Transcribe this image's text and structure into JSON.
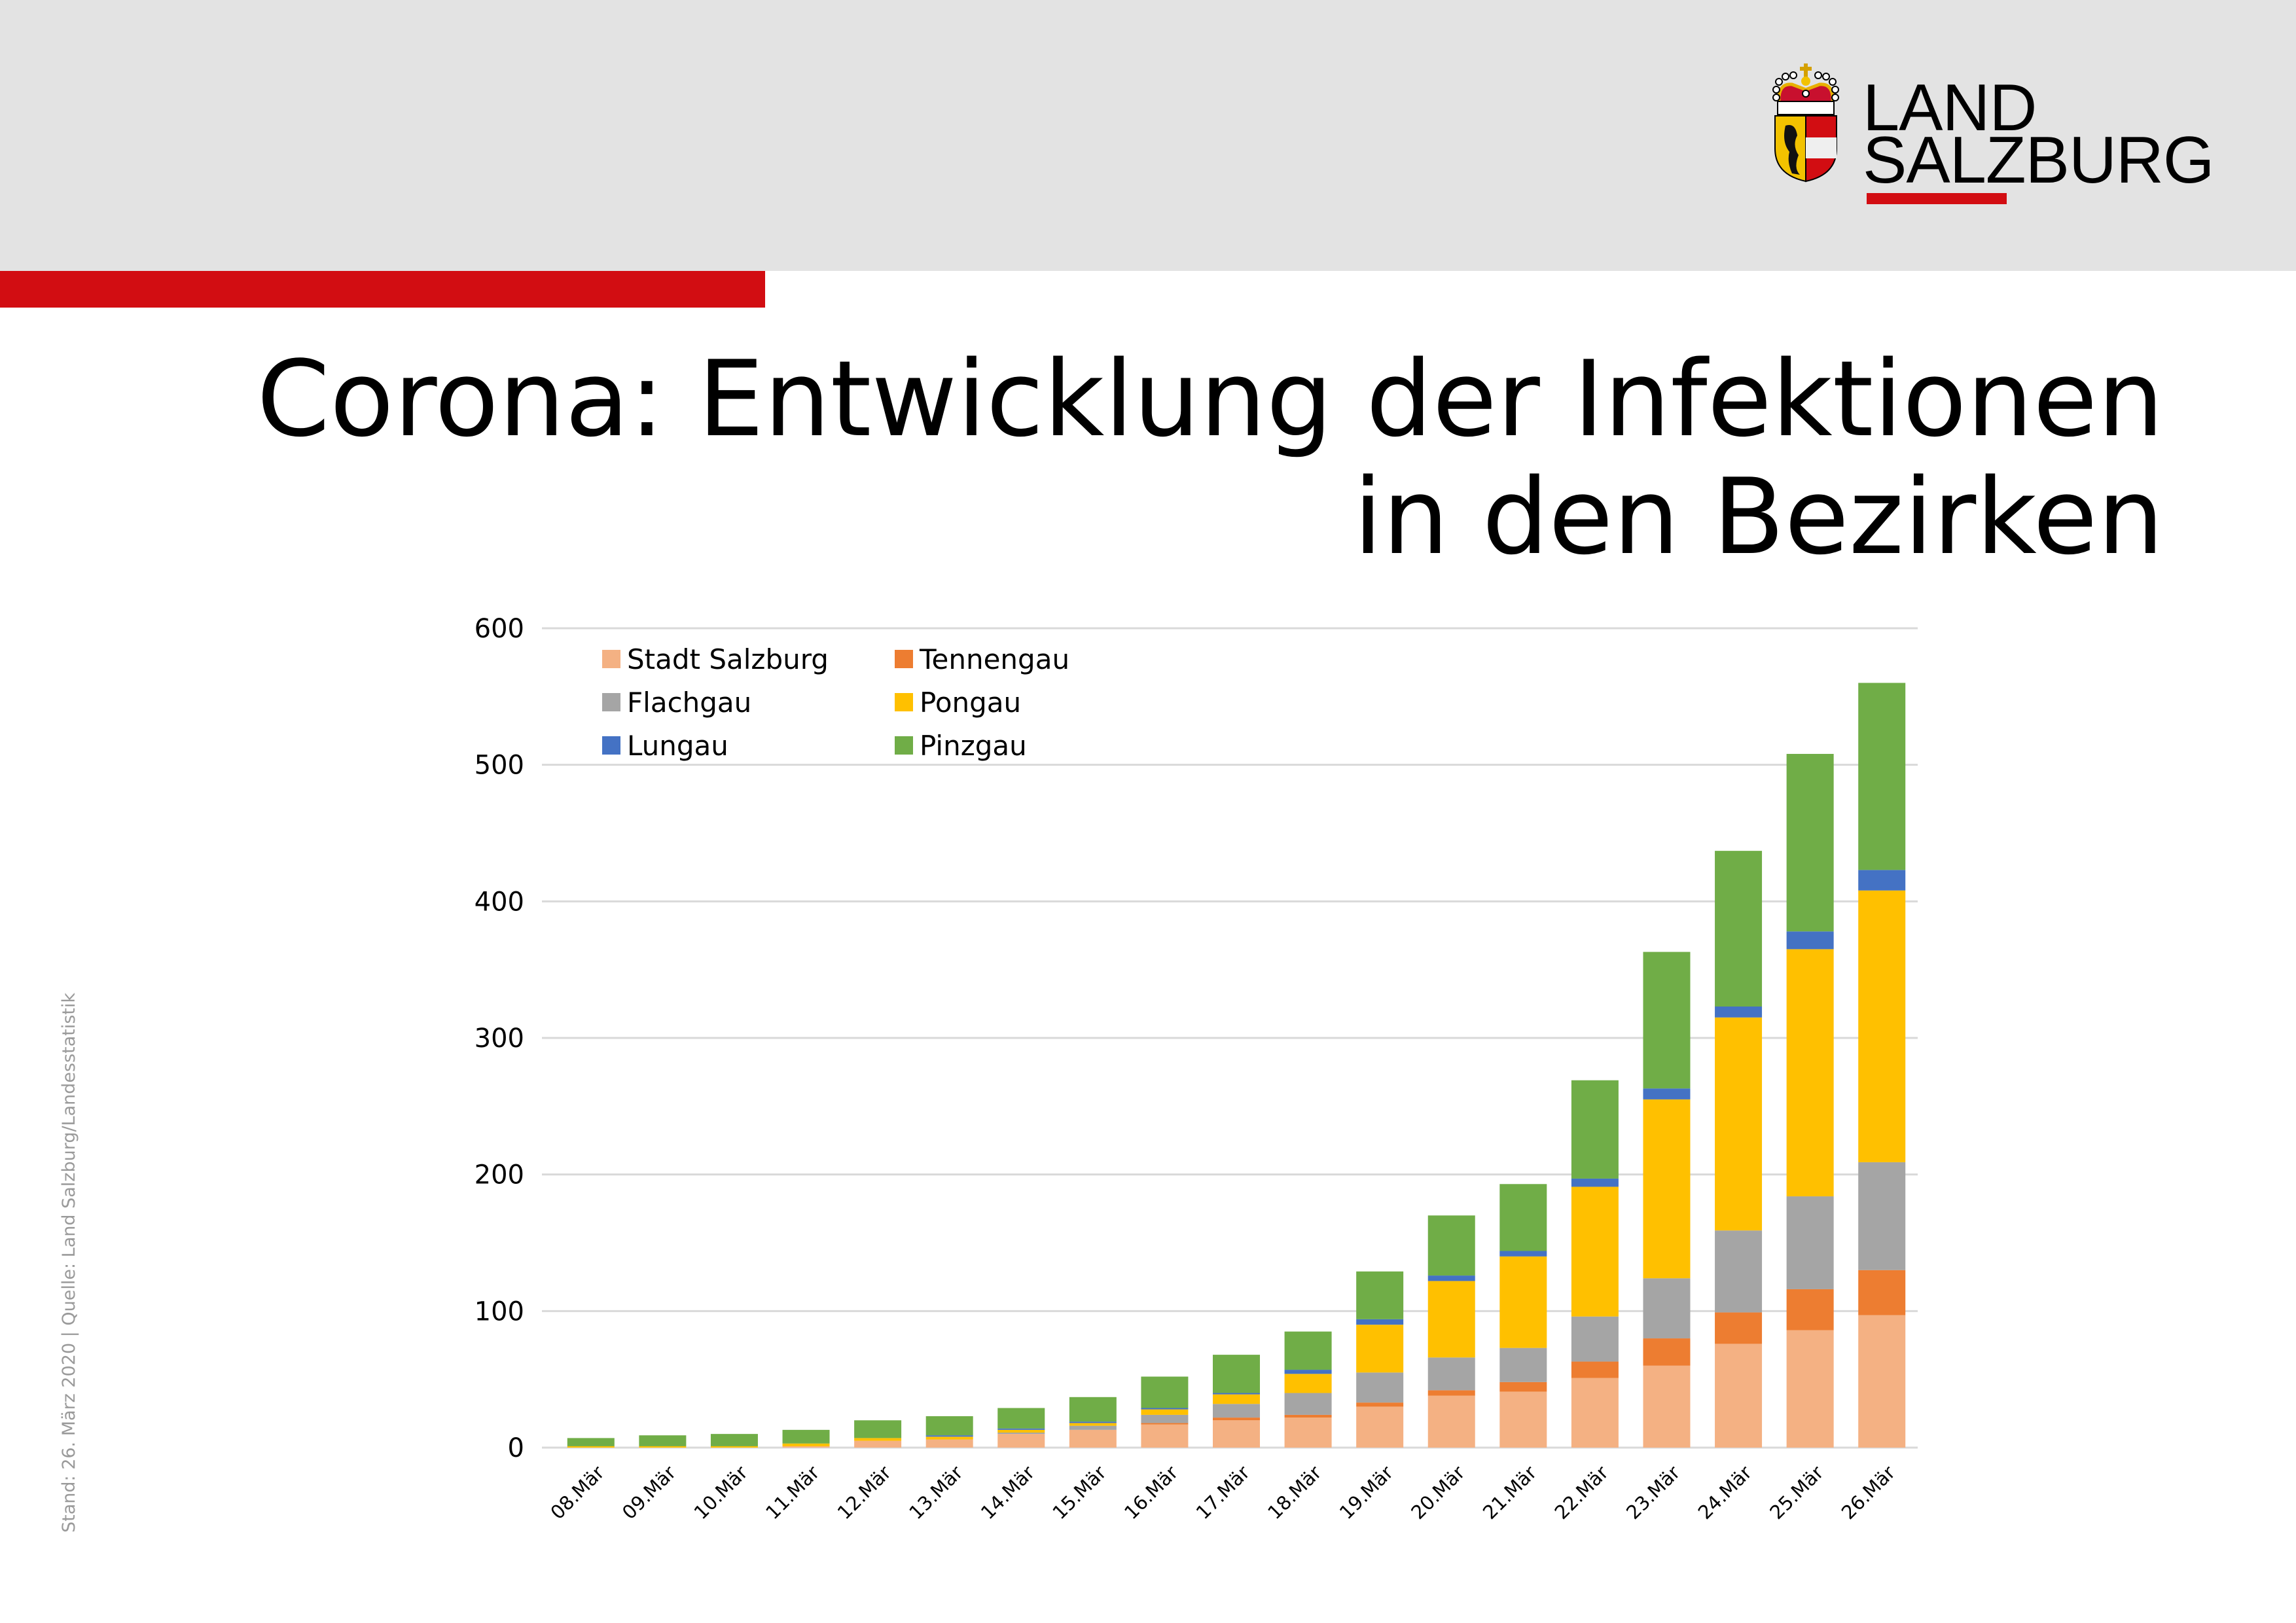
{
  "header": {
    "logo": {
      "line1": "LAND",
      "line2": "SALZBURG"
    },
    "brand_red": "#d20d12",
    "header_bg": "#e3e3e3"
  },
  "title": {
    "line1": "Corona: Entwicklung der Infektionen",
    "line2": "in den Bezirken"
  },
  "side_note": "Stand: 26. März 2020 | Quelle: Land Salzburg/Landesstatistik",
  "chart_data": {
    "type": "bar",
    "stacked": true,
    "title": "Corona: Entwicklung der Infektionen in den Bezirken",
    "xlabel": "",
    "ylabel": "",
    "ylim": [
      0,
      600
    ],
    "yticks": [
      "0",
      "100",
      "200",
      "300",
      "400",
      "500",
      "600"
    ],
    "grid": true,
    "legend_position": "top-left",
    "categories": [
      "08.Mär",
      "09.Mär",
      "10.Mär",
      "11.Mär",
      "12.Mär",
      "13.Mär",
      "14.Mär",
      "15.Mär",
      "16.Mär",
      "17.Mär",
      "18.Mär",
      "19.Mär",
      "20.Mär",
      "21.Mär",
      "22.Mär",
      "23.Mär",
      "24.Mär",
      "25.Mär",
      "26.Mär"
    ],
    "series": [
      {
        "name": "Stadt Salzburg",
        "color": "#f4b183",
        "values": [
          0,
          0,
          0,
          1,
          5,
          6,
          10,
          13,
          17,
          20,
          22,
          30,
          38,
          41,
          51,
          60,
          76,
          86,
          97
        ]
      },
      {
        "name": "Tennengau",
        "color": "#ed7d31",
        "values": [
          0,
          0,
          0,
          0,
          0,
          0,
          0,
          0,
          1,
          2,
          2,
          3,
          4,
          7,
          12,
          20,
          23,
          30,
          33
        ]
      },
      {
        "name": "Flachgau",
        "color": "#a5a5a5",
        "values": [
          0,
          0,
          0,
          0,
          0,
          0,
          1,
          3,
          6,
          10,
          16,
          22,
          24,
          25,
          33,
          44,
          60,
          68,
          79
        ]
      },
      {
        "name": "Pongau",
        "color": "#ffc000",
        "values": [
          1,
          1,
          1,
          2,
          2,
          2,
          2,
          2,
          4,
          7,
          14,
          35,
          56,
          67,
          95,
          131,
          156,
          181,
          199
        ]
      },
      {
        "name": "Lungau",
        "color": "#4472c4",
        "values": [
          0,
          0,
          0,
          0,
          0,
          1,
          1,
          1,
          1,
          1,
          3,
          4,
          4,
          4,
          6,
          8,
          8,
          13,
          15
        ]
      },
      {
        "name": "Pinzgau",
        "color": "#70ad47",
        "values": [
          6,
          8,
          9,
          10,
          13,
          14,
          15,
          18,
          23,
          28,
          28,
          35,
          44,
          49,
          72,
          100,
          114,
          130,
          137
        ]
      }
    ]
  }
}
